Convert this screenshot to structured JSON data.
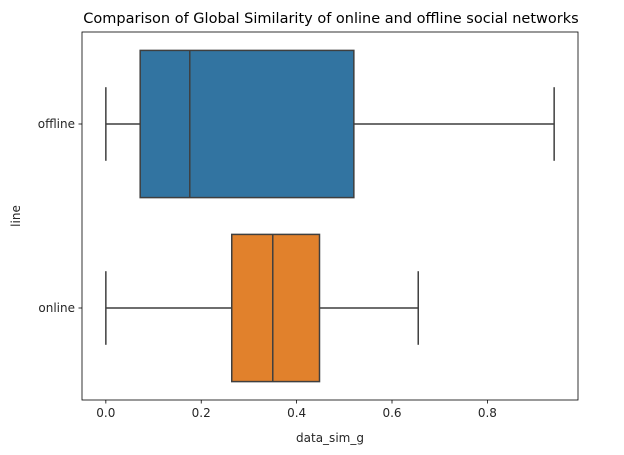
{
  "chart_data": {
    "type": "box",
    "orientation": "horizontal",
    "title": "Comparison of Global Similarity of online and offline social networks",
    "xlabel": "data_sim_g",
    "ylabel": "line",
    "xlim": [
      -0.05,
      0.99
    ],
    "xticks": [
      0.0,
      0.2,
      0.4,
      0.6,
      0.8
    ],
    "xtick_labels": [
      "0.0",
      "0.2",
      "0.4",
      "0.6",
      "0.8"
    ],
    "grid": false,
    "categories": [
      "offline",
      "online"
    ],
    "boxes": [
      {
        "name": "offline",
        "whisker_low": 0.0,
        "q1": 0.072,
        "median": 0.176,
        "q3": 0.52,
        "whisker_high": 0.94,
        "color": "#3274a1"
      },
      {
        "name": "online",
        "whisker_low": 0.0,
        "q1": 0.264,
        "median": 0.35,
        "q3": 0.448,
        "whisker_high": 0.655,
        "color": "#e1812c"
      }
    ],
    "line_color": "#3f3f3f"
  }
}
